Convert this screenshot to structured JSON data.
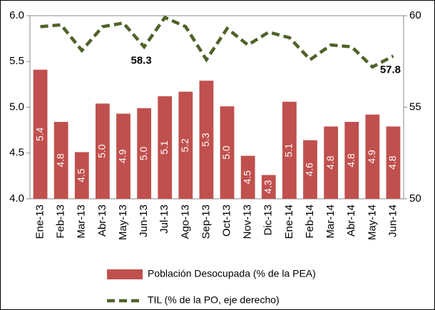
{
  "chart_data": {
    "type": "bar_line",
    "categories": [
      "Ene-13",
      "Feb-13",
      "Mar-13",
      "Abr-13",
      "May-13",
      "Jun-13",
      "Jul-13",
      "Ago-13",
      "Sep-13",
      "Oct-13",
      "Nov-13",
      "Dic-13",
      "Ene-14",
      "Feb-14",
      "Mar-14",
      "Abr-14",
      "May-14",
      "Jun-14"
    ],
    "series": [
      {
        "name": "Población Desocupada (% de la PEA)",
        "type": "bar",
        "color": "#c0504d",
        "values": [
          5.41,
          4.84,
          4.51,
          5.04,
          4.93,
          4.99,
          5.12,
          5.17,
          5.29,
          5.01,
          4.47,
          4.26,
          5.06,
          4.64,
          4.79,
          4.84,
          4.92,
          4.79
        ],
        "value_labels": [
          "5.4",
          "4.8",
          "4.5",
          "5.0",
          "4.9",
          "5.0",
          "5.1",
          "5.2",
          "5.3",
          "5.0",
          "4.5",
          "4.3",
          "5.1",
          "4.6",
          "4.8",
          "4.8",
          "4.9",
          "4.8"
        ]
      },
      {
        "name": "TIL (% de la PO, eje derecho)",
        "type": "line",
        "axis": "y2",
        "color": "#4f6228",
        "dashed": true,
        "values": [
          59.4,
          59.5,
          58.1,
          59.4,
          59.6,
          58.3,
          59.9,
          59.4,
          57.6,
          59.3,
          58.4,
          59.1,
          58.8,
          57.6,
          58.4,
          58.3,
          57.2,
          57.8
        ],
        "value_labels": [
          null,
          null,
          null,
          null,
          null,
          "58.3",
          null,
          null,
          null,
          null,
          null,
          null,
          null,
          null,
          null,
          null,
          null,
          "57.8"
        ]
      }
    ],
    "ylim": [
      4,
      6
    ],
    "yticks": [
      {
        "value": 4,
        "label": "4.0"
      },
      {
        "value": 4.5,
        "label": "4.5"
      },
      {
        "value": 5,
        "label": "5.0"
      },
      {
        "value": 5.5,
        "label": "5.5"
      },
      {
        "value": 6,
        "label": "6.0"
      }
    ],
    "y2lim": [
      50,
      60
    ],
    "y2ticks": [
      50,
      55,
      60
    ],
    "legend": "bottom"
  }
}
